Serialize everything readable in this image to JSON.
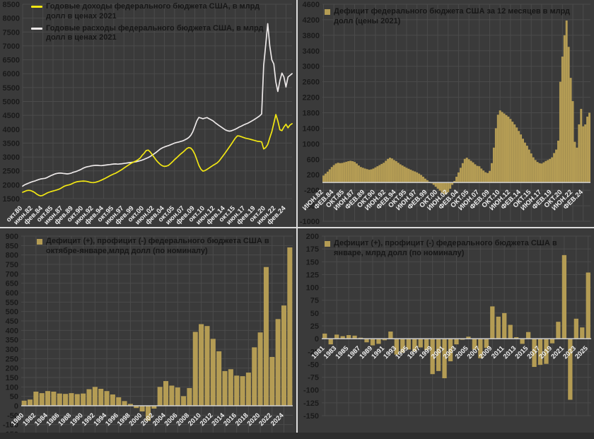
{
  "app": {
    "background": "#3a3a3a",
    "grid_color": "#4b4b4b",
    "axis_text_color": "#1a1a1a",
    "x_label_text_color": "#ededed",
    "bar_color": "#b49c54",
    "revenue_line_color": "#f2e713",
    "outlay_line_color": "#ece8e8",
    "zero_axis_color": "#cfcfcf",
    "divider_color": "#dcdcdc"
  },
  "chart_data": [
    {
      "id": "revenues-outlays",
      "type": "line",
      "position": "top-left",
      "legend": [
        {
          "label": "Годовые доходы федерального бюджета США, в млрд долл в ценах 2021",
          "color_key": "revenue_line_color"
        },
        {
          "label": "Годовые расходы федерального бюджета США, в млрд долл в ценах 2021",
          "color_key": "outlay_line_color"
        }
      ],
      "ylim": [
        1500,
        8500
      ],
      "ystep": 500,
      "grid": true,
      "x_tick_labels": [
        "окт.80",
        "июн.82",
        "фев.84",
        "окт.85",
        "июн.87",
        "фев.89",
        "окт.90",
        "июн.92",
        "фев.94",
        "окт.95",
        "июн.97",
        "фев.99",
        "окт.00",
        "июн.02",
        "фев.04",
        "окт.05",
        "июн.07",
        "фев.09",
        "окт.10",
        "июн.12",
        "фев.14",
        "окт.15",
        "июн.17",
        "фев.19",
        "окт.20",
        "июн.22",
        "фев.24"
      ],
      "x_tick_every_n_samples": 5,
      "sampling": "3 samples per year (Feb/Jun/Oct), Oct 1980 - Feb 2025, values in bln 2021 USD",
      "series": [
        {
          "name": "Годовые доходы",
          "values": [
            1730,
            1760,
            1790,
            1800,
            1790,
            1760,
            1720,
            1660,
            1620,
            1600,
            1620,
            1660,
            1700,
            1730,
            1755,
            1775,
            1795,
            1815,
            1840,
            1880,
            1925,
            1960,
            1980,
            2000,
            2025,
            2060,
            2090,
            2110,
            2120,
            2130,
            2135,
            2130,
            2115,
            2095,
            2080,
            2078,
            2090,
            2110,
            2140,
            2170,
            2205,
            2240,
            2280,
            2320,
            2355,
            2390,
            2420,
            2460,
            2505,
            2550,
            2600,
            2650,
            2700,
            2748,
            2790,
            2825,
            2860,
            2905,
            2960,
            3060,
            3135,
            3230,
            3250,
            3180,
            3080,
            2980,
            2880,
            2800,
            2730,
            2680,
            2660,
            2670,
            2700,
            2760,
            2830,
            2905,
            2970,
            3040,
            3105,
            3165,
            3230,
            3300,
            3340,
            3320,
            3240,
            3100,
            2900,
            2700,
            2560,
            2490,
            2510,
            2555,
            2600,
            2650,
            2700,
            2740,
            2785,
            2855,
            2950,
            3050,
            3150,
            3250,
            3355,
            3460,
            3570,
            3680,
            3760,
            3755,
            3730,
            3705,
            3680,
            3660,
            3645,
            3625,
            3605,
            3585,
            3565,
            3560,
            3545,
            3290,
            3340,
            3450,
            3690,
            3910,
            4210,
            4530,
            4300,
            3980,
            3950,
            4080,
            4180,
            4050,
            4150,
            4200
          ]
        },
        {
          "name": "Годовые расходы",
          "values": [
            1950,
            2000,
            2030,
            2060,
            2090,
            2115,
            2135,
            2165,
            2190,
            2210,
            2220,
            2230,
            2255,
            2295,
            2330,
            2360,
            2390,
            2410,
            2420,
            2418,
            2410,
            2400,
            2392,
            2400,
            2420,
            2450,
            2470,
            2495,
            2525,
            2560,
            2600,
            2630,
            2650,
            2662,
            2680,
            2692,
            2700,
            2700,
            2692,
            2690,
            2700,
            2710,
            2718,
            2728,
            2738,
            2748,
            2750,
            2742,
            2750,
            2758,
            2768,
            2778,
            2788,
            2798,
            2808,
            2818,
            2830,
            2848,
            2868,
            2890,
            2918,
            2948,
            2980,
            3020,
            3070,
            3120,
            3172,
            3230,
            3290,
            3330,
            3360,
            3390,
            3412,
            3440,
            3470,
            3500,
            3520,
            3540,
            3560,
            3580,
            3612,
            3650,
            3700,
            3780,
            3905,
            4100,
            4300,
            4425,
            4405,
            4380,
            4400,
            4420,
            4380,
            4340,
            4300,
            4240,
            4182,
            4130,
            4080,
            4030,
            3980,
            3950,
            3930,
            3942,
            3970,
            4000,
            4040,
            4080,
            4112,
            4150,
            4182,
            4212,
            4250,
            4290,
            4332,
            4380,
            4430,
            4480,
            4550,
            6300,
            7050,
            7800,
            7000,
            6500,
            6350,
            5700,
            5360,
            5750,
            6020,
            5880,
            5520,
            5880,
            5940,
            6000
          ]
        }
      ]
    },
    {
      "id": "rolling-12m-deficit",
      "type": "bar",
      "position": "top-right",
      "legend": [
        {
          "label": "Дефицит федерального бюджета США за 12 месяцев в млрд долл (цены 2021)",
          "color_key": "bar_color"
        }
      ],
      "ylim": [
        -1000,
        4600
      ],
      "ystep": 400,
      "grid": true,
      "x_tick_labels": [
        "ИЮН.82",
        "ФЕВ.84",
        "ОКТ.85",
        "ИЮН.87",
        "ФЕВ.89",
        "ОКТ.90",
        "ИЮН.92",
        "ФЕВ.94",
        "ОКТ.95",
        "ИЮН.97",
        "ФЕВ.99",
        "ОКТ.00",
        "ИЮН.02",
        "ФЕВ.04",
        "ОКТ.05",
        "ИЮН.07",
        "ФЕВ.09",
        "ОКТ.10",
        "ИЮН.12",
        "ФЕВ.14",
        "ОКТ.15",
        "ИЮН.17",
        "ФЕВ.19",
        "ОКТ.20",
        "ИЮН.22",
        "ФЕВ.24"
      ],
      "x_tick_every_n_samples": 5,
      "sampling": "3 samples per year (Jun/Oct/Feb), Jun 1982 - Feb 2025, values in bln 2021 USD",
      "values": [
        180,
        230,
        280,
        340,
        400,
        450,
        490,
        510,
        500,
        505,
        520,
        535,
        550,
        560,
        550,
        530,
        490,
        440,
        400,
        380,
        360,
        345,
        330,
        340,
        360,
        390,
        420,
        450,
        480,
        510,
        560,
        610,
        640,
        620,
        580,
        550,
        510,
        470,
        440,
        410,
        380,
        355,
        330,
        305,
        285,
        260,
        230,
        195,
        150,
        100,
        60,
        20,
        -20,
        -60,
        -110,
        -160,
        -210,
        -260,
        -300,
        -310,
        -250,
        -160,
        -60,
        40,
        150,
        260,
        380,
        500,
        610,
        640,
        600,
        560,
        520,
        470,
        430,
        420,
        360,
        310,
        265,
        245,
        300,
        500,
        900,
        1400,
        1750,
        1860,
        1820,
        1780,
        1740,
        1700,
        1640,
        1570,
        1500,
        1420,
        1330,
        1240,
        1130,
        1030,
        950,
        850,
        750,
        650,
        580,
        530,
        500,
        490,
        520,
        555,
        580,
        610,
        650,
        760,
        850,
        1080,
        2600,
        3250,
        3800,
        4180,
        3500,
        2700,
        2100,
        1050,
        900,
        1500,
        1900,
        1450,
        1500,
        1700,
        1800
      ]
    },
    {
      "id": "oct-jan-deficit",
      "type": "bar",
      "position": "bottom-left",
      "legend": [
        {
          "label": "Дефицит (+), профицит (-) федерального бюджета США в октябре-январе,млрд долл (по номиналу)",
          "color_key": "bar_color"
        }
      ],
      "ylim": [
        -150,
        900
      ],
      "ystep": 50,
      "grid": true,
      "categories": [
        1980,
        1981,
        1982,
        1983,
        1984,
        1985,
        1986,
        1987,
        1988,
        1989,
        1990,
        1991,
        1992,
        1993,
        1994,
        1995,
        1996,
        1997,
        1998,
        1999,
        2000,
        2001,
        2002,
        2003,
        2004,
        2005,
        2006,
        2007,
        2008,
        2009,
        2010,
        2011,
        2012,
        2013,
        2014,
        2015,
        2016,
        2017,
        2018,
        2019,
        2020,
        2021,
        2022,
        2023,
        2024,
        2025
      ],
      "x_tick_labels": [
        "1980",
        "1982",
        "1984",
        "1986",
        "1988",
        "1990",
        "1992",
        "1994",
        "1996",
        "1998",
        "2000",
        "2002",
        "2004",
        "2006",
        "2008",
        "2010",
        "2012",
        "2014",
        "2016",
        "2018",
        "2020",
        "2022",
        "2024"
      ],
      "x_tick_every_n_samples": 2,
      "values": [
        27,
        33,
        75,
        67,
        78,
        75,
        65,
        63,
        67,
        62,
        65,
        88,
        100,
        90,
        78,
        60,
        45,
        25,
        10,
        -12,
        -30,
        -80,
        -15,
        100,
        131,
        107,
        97,
        51,
        94,
        392,
        433,
        423,
        355,
        289,
        184,
        194,
        160,
        157,
        176,
        310,
        389,
        736,
        259,
        460,
        532,
        840
      ]
    },
    {
      "id": "january-deficit",
      "type": "bar",
      "position": "bottom-right",
      "legend": [
        {
          "label": "Дефицит (+), профицит (-) федерального бюджета США в январе, млрд долл (по номиналу)",
          "color_key": "bar_color"
        }
      ],
      "ylim": [
        -150,
        200
      ],
      "ystep": 25,
      "grid": true,
      "categories": [
        1981,
        1982,
        1983,
        1984,
        1985,
        1986,
        1987,
        1988,
        1989,
        1990,
        1991,
        1992,
        1993,
        1994,
        1995,
        1996,
        1997,
        1998,
        1999,
        2000,
        2001,
        2002,
        2003,
        2004,
        2005,
        2006,
        2007,
        2008,
        2009,
        2010,
        2011,
        2012,
        2013,
        2014,
        2015,
        2016,
        2017,
        2018,
        2019,
        2020,
        2021,
        2022,
        2023,
        2024,
        2025
      ],
      "x_tick_labels": [
        "1981",
        "1983",
        "1985",
        "1987",
        "1989",
        "1991",
        "1993",
        "1995",
        "1997",
        "1999",
        "2001",
        "2003",
        "2005",
        "2007",
        "2009",
        "2011",
        "2013",
        "2015",
        "2017",
        "2019",
        "2021",
        "2023",
        "2025"
      ],
      "x_tick_every_n_samples": 2,
      "values": [
        10,
        -11,
        8,
        5,
        7,
        6,
        2,
        -7,
        -13,
        -10,
        -3,
        14,
        -31,
        -27,
        -21,
        -25,
        -17,
        -22,
        -69,
        -63,
        -77,
        -44,
        -11,
        -2,
        4,
        -21,
        -38,
        -18,
        63,
        43,
        50,
        27,
        3,
        -10,
        13,
        -55,
        -51,
        -49,
        -9,
        33,
        163,
        -119,
        39,
        22,
        129
      ]
    }
  ]
}
